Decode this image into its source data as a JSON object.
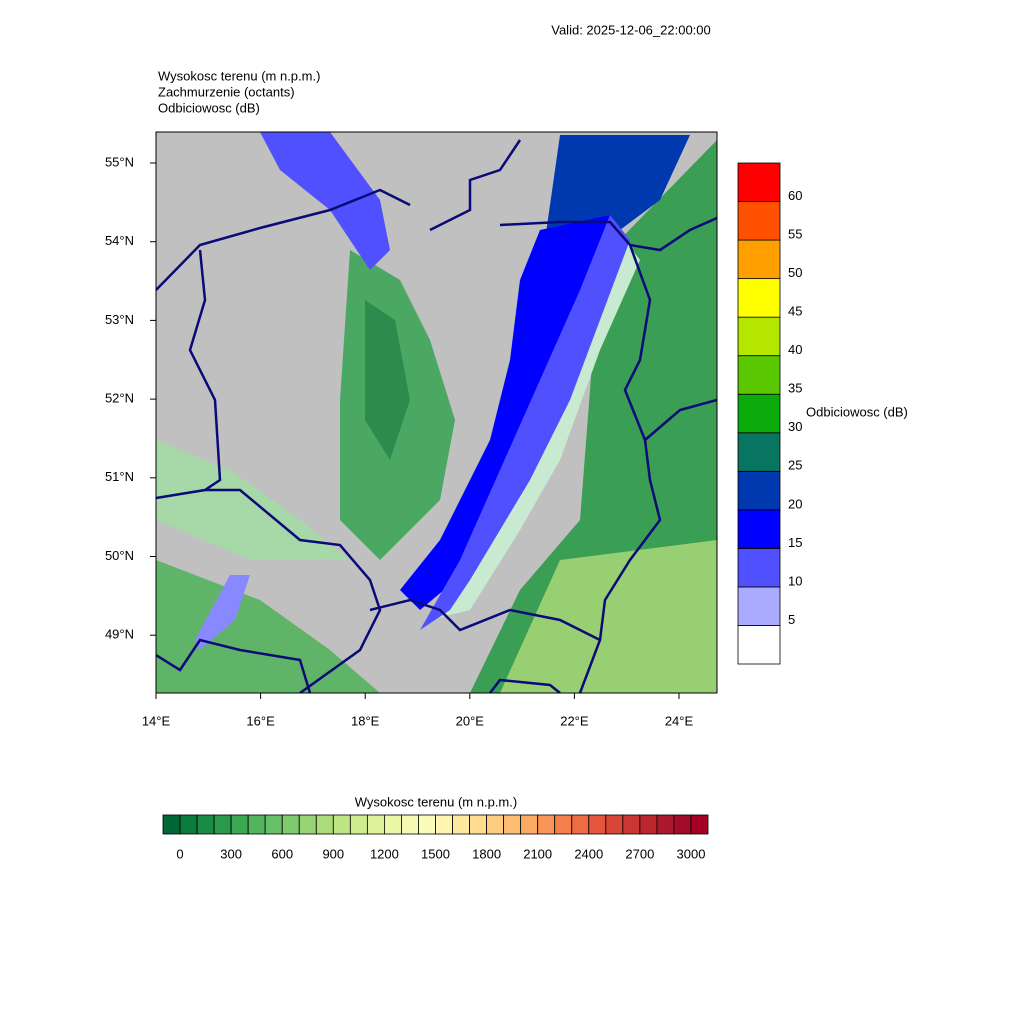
{
  "header": {
    "valid": "Valid: 2025-12-06_22:00:00",
    "fields": [
      "Wysokosc terenu   (m n.p.m.)",
      "Zachmurzenie   (octants)",
      "Odbiciowosc   (dB)"
    ]
  },
  "map": {
    "lat_labels": [
      "55°N",
      "54°N",
      "53°N",
      "52°N",
      "51°N",
      "50°N",
      "49°N"
    ],
    "lon_labels": [
      "14°E",
      "16°E",
      "18°E",
      "20°E",
      "22°E",
      "24°E"
    ]
  },
  "reflectivity_legend": {
    "title": "Odbiciowosc  (dB)",
    "labels": [
      "5",
      "10",
      "15",
      "20",
      "25",
      "30",
      "35",
      "40",
      "45",
      "50",
      "55",
      "60"
    ],
    "colors": [
      "#ffffff",
      "#aaaaff",
      "#5050ff",
      "#0000ff",
      "#0038b0",
      "#087560",
      "#0aab0a",
      "#5ac800",
      "#b4e600",
      "#ffff00",
      "#ffa000",
      "#ff5000",
      "#ff0000"
    ]
  },
  "terrain_legend": {
    "title": "Wysokosc terenu  (m n.p.m.)",
    "labels": [
      "0",
      "300",
      "600",
      "900",
      "1200",
      "1500",
      "1800",
      "2100",
      "2400",
      "2700",
      "3000"
    ],
    "colors": [
      "#006837",
      "#0b7a3d",
      "#198b43",
      "#2a9a4a",
      "#3ca853",
      "#52b55e",
      "#68c069",
      "#7fca6f",
      "#97d474",
      "#abdc7a",
      "#bee584",
      "#cfec8f",
      "#ddf29b",
      "#eaf7a7",
      "#f4fab4",
      "#fbfbba",
      "#fff5b0",
      "#fee9a0",
      "#fedc90",
      "#fecd81",
      "#fdbd72",
      "#fca964",
      "#f99556",
      "#f5804c",
      "#ee6b43",
      "#e4573c",
      "#d84636",
      "#ca3632",
      "#bb262f",
      "#ad172c",
      "#a20c29",
      "#a50026"
    ]
  }
}
